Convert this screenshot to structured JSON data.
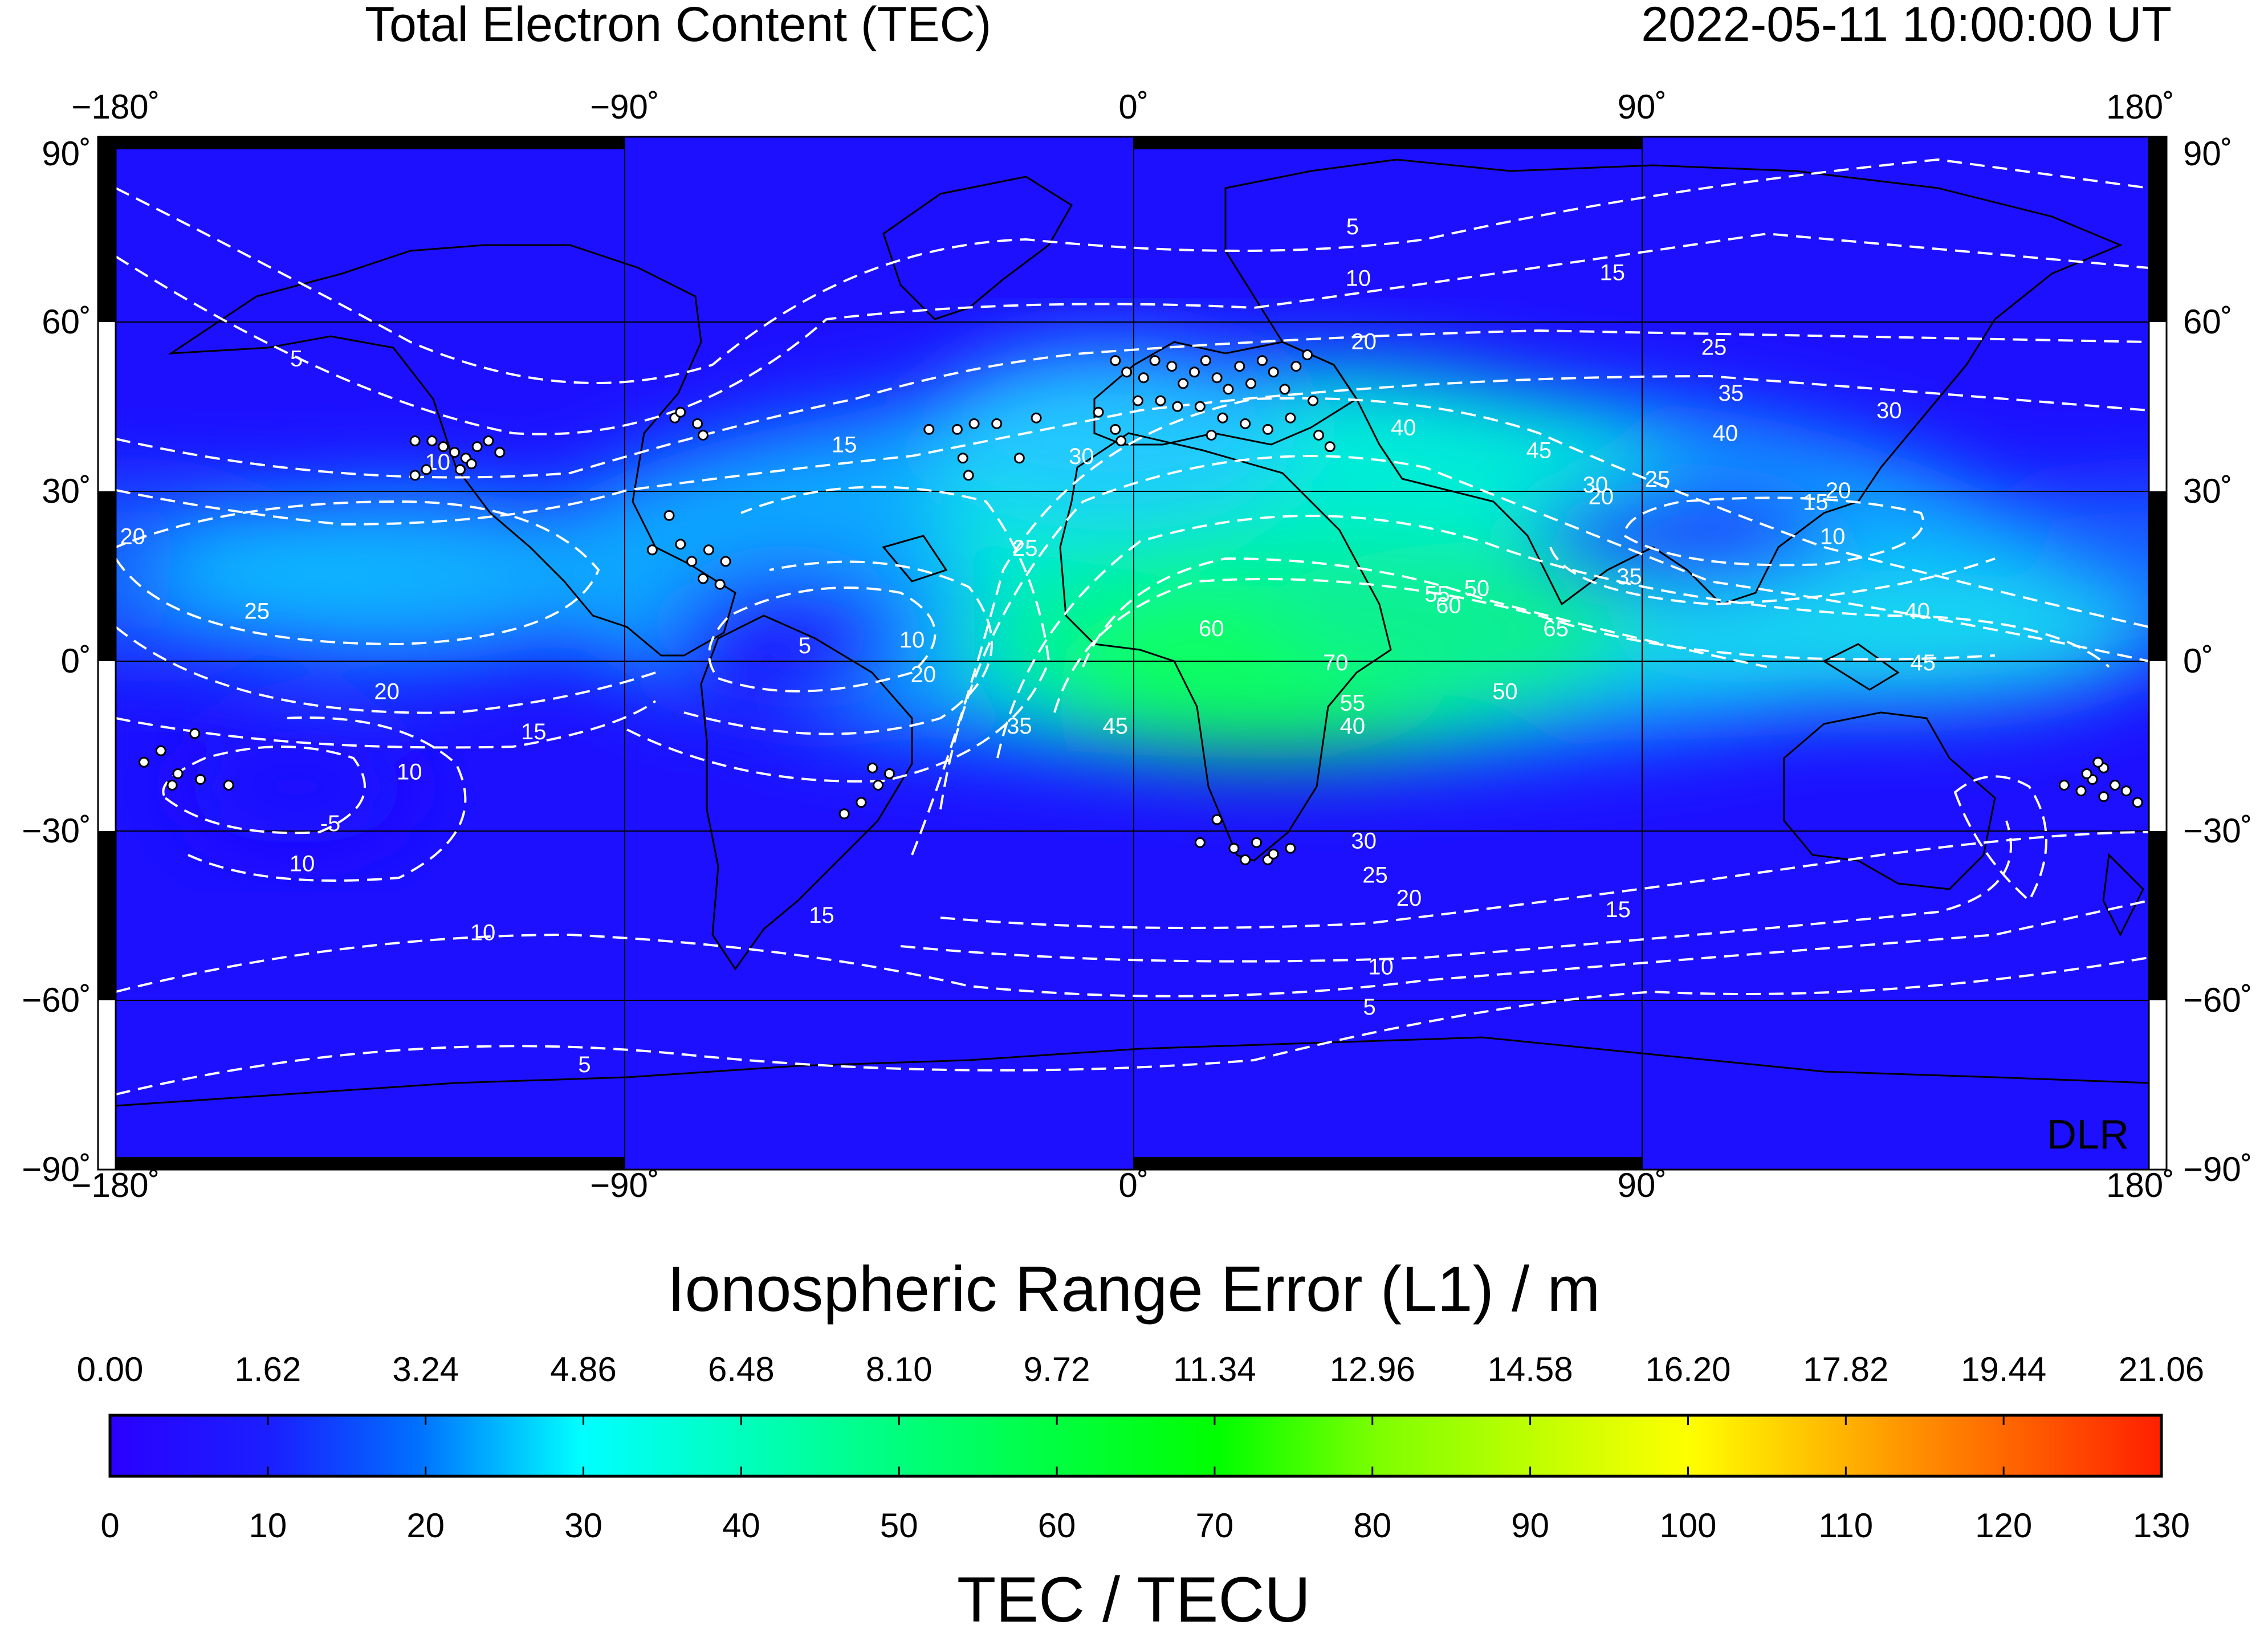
{
  "title": "Total Electron Content (TEC)",
  "timestamp": "2022-05-11  10:00:00 UT",
  "watermark": "DLR",
  "map": {
    "lon_ticks": [
      "−180˚",
      "−90˚",
      "0˚",
      "90˚",
      "180˚"
    ],
    "lat_ticks": [
      "90˚",
      "60˚",
      "30˚",
      "0˚",
      "−30˚",
      "−60˚",
      "−90˚"
    ],
    "contour_labels": [
      {
        "text": "5",
        "lon": -148,
        "lat": 50
      },
      {
        "text": "10",
        "lon": -123,
        "lat": 32
      },
      {
        "text": "5",
        "lon": 39,
        "lat": 73
      },
      {
        "text": "10",
        "lon": 40,
        "lat": 64
      },
      {
        "text": "15",
        "lon": 85,
        "lat": 65
      },
      {
        "text": "20",
        "lon": 41,
        "lat": 53
      },
      {
        "text": "25",
        "lon": 103,
        "lat": 52
      },
      {
        "text": "35",
        "lon": 106,
        "lat": 44
      },
      {
        "text": "40",
        "lon": 105,
        "lat": 37
      },
      {
        "text": "30",
        "lon": 134,
        "lat": 41
      },
      {
        "text": "15",
        "lon": -51,
        "lat": 35
      },
      {
        "text": "30",
        "lon": -9,
        "lat": 33
      },
      {
        "text": "40",
        "lon": 48,
        "lat": 38
      },
      {
        "text": "45",
        "lon": 72,
        "lat": 34
      },
      {
        "text": "25",
        "lon": -19,
        "lat": 17
      },
      {
        "text": "25",
        "lon": -155,
        "lat": 6
      },
      {
        "text": "20",
        "lon": -177,
        "lat": 19
      },
      {
        "text": "20",
        "lon": -132,
        "lat": -8
      },
      {
        "text": "15",
        "lon": -106,
        "lat": -15
      },
      {
        "text": "10",
        "lon": -128,
        "lat": -22
      },
      {
        "text": "10",
        "lon": -147,
        "lat": -38
      },
      {
        "text": "-5",
        "lon": -142,
        "lat": -31
      },
      {
        "text": "5",
        "lon": -58,
        "lat": 0
      },
      {
        "text": "10",
        "lon": -39,
        "lat": 1
      },
      {
        "text": "20",
        "lon": -37,
        "lat": -5
      },
      {
        "text": "35",
        "lon": -20,
        "lat": -14
      },
      {
        "text": "45",
        "lon": -3,
        "lat": -14
      },
      {
        "text": "60",
        "lon": 14,
        "lat": 3
      },
      {
        "text": "70",
        "lon": 36,
        "lat": -3
      },
      {
        "text": "65",
        "lon": 75,
        "lat": 3
      },
      {
        "text": "60",
        "lon": 56,
        "lat": 7
      },
      {
        "text": "55",
        "lon": 54,
        "lat": 9
      },
      {
        "text": "50",
        "lon": 61,
        "lat": 10
      },
      {
        "text": "55",
        "lon": 39,
        "lat": -10
      },
      {
        "text": "40",
        "lon": 39,
        "lat": -14
      },
      {
        "text": "50",
        "lon": 66,
        "lat": -8
      },
      {
        "text": "30",
        "lon": 82,
        "lat": 28
      },
      {
        "text": "25",
        "lon": 93,
        "lat": 29
      },
      {
        "text": "20",
        "lon": 83,
        "lat": 26
      },
      {
        "text": "15",
        "lon": 121,
        "lat": 25
      },
      {
        "text": "20",
        "lon": 125,
        "lat": 27
      },
      {
        "text": "10",
        "lon": 124,
        "lat": 19
      },
      {
        "text": "35",
        "lon": 88,
        "lat": 12
      },
      {
        "text": "40",
        "lon": 139,
        "lat": 6
      },
      {
        "text": "45",
        "lon": 140,
        "lat": -3
      },
      {
        "text": "30",
        "lon": 41,
        "lat": -34
      },
      {
        "text": "25",
        "lon": 43,
        "lat": -40
      },
      {
        "text": "20",
        "lon": 49,
        "lat": -44
      },
      {
        "text": "15",
        "lon": 86,
        "lat": -46
      },
      {
        "text": "15",
        "lon": -55,
        "lat": -47
      },
      {
        "text": "10",
        "lon": -115,
        "lat": -50
      },
      {
        "text": "10",
        "lon": 44,
        "lat": -56
      },
      {
        "text": "5",
        "lon": 42,
        "lat": -63
      },
      {
        "text": "5",
        "lon": -97,
        "lat": -73
      }
    ],
    "stations": [
      [
        -127,
        37
      ],
      [
        -124,
        37
      ],
      [
        -122,
        36
      ],
      [
        -120,
        35
      ],
      [
        -118,
        34
      ],
      [
        -116,
        36
      ],
      [
        -114,
        37
      ],
      [
        -112,
        35
      ],
      [
        -119,
        32
      ],
      [
        -117,
        33
      ],
      [
        -125,
        32
      ],
      [
        -127,
        31
      ],
      [
        -81,
        41
      ],
      [
        -80,
        42
      ],
      [
        -77,
        40
      ],
      [
        -76,
        38
      ],
      [
        -82,
        24
      ],
      [
        -85,
        18
      ],
      [
        -80,
        19
      ],
      [
        -78,
        16
      ],
      [
        -75,
        18
      ],
      [
        -72,
        16
      ],
      [
        -76,
        13
      ],
      [
        -73,
        12
      ],
      [
        -36,
        39
      ],
      [
        -31,
        39
      ],
      [
        -28,
        40
      ],
      [
        -24,
        40
      ],
      [
        -30,
        34
      ],
      [
        -29,
        31
      ],
      [
        -20,
        34
      ],
      [
        -17,
        41
      ],
      [
        -3,
        51
      ],
      [
        -1,
        49
      ],
      [
        2,
        48
      ],
      [
        4,
        51
      ],
      [
        7,
        50
      ],
      [
        9,
        47
      ],
      [
        11,
        49
      ],
      [
        13,
        51
      ],
      [
        15,
        48
      ],
      [
        17,
        46
      ],
      [
        19,
        50
      ],
      [
        21,
        47
      ],
      [
        23,
        51
      ],
      [
        25,
        49
      ],
      [
        27,
        46
      ],
      [
        29,
        50
      ],
      [
        31,
        52
      ],
      [
        5,
        44
      ],
      [
        8,
        43
      ],
      [
        12,
        43
      ],
      [
        16,
        41
      ],
      [
        20,
        40
      ],
      [
        24,
        39
      ],
      [
        28,
        41
      ],
      [
        32,
        44
      ],
      [
        -6,
        42
      ],
      [
        -3,
        39
      ],
      [
        1,
        44
      ],
      [
        14,
        38
      ],
      [
        -2,
        37
      ],
      [
        35,
        36
      ],
      [
        33,
        38
      ],
      [
        -175,
        -19
      ],
      [
        -172,
        -17
      ],
      [
        -169,
        -21
      ],
      [
        -166,
        -14
      ],
      [
        -165,
        -22
      ],
      [
        -170,
        -23
      ],
      [
        -160,
        -23
      ],
      [
        -45,
        -23
      ],
      [
        -48,
        -26
      ],
      [
        -51,
        -28
      ],
      [
        -43,
        -21
      ],
      [
        -46,
        -20
      ],
      [
        12,
        -33
      ],
      [
        18,
        -34
      ],
      [
        22,
        -33
      ],
      [
        24,
        -36
      ],
      [
        28,
        -34
      ],
      [
        15,
        -29
      ],
      [
        20,
        -36
      ],
      [
        25,
        -35
      ],
      [
        165,
        -23
      ],
      [
        168,
        -24
      ],
      [
        170,
        -22
      ],
      [
        172,
        -20
      ],
      [
        174,
        -23
      ],
      [
        176,
        -24
      ],
      [
        169,
        -21
      ],
      [
        172,
        -25
      ],
      [
        178,
        -26
      ],
      [
        171,
        -19
      ]
    ]
  },
  "colorbar": {
    "top_label": "Ionospheric Range Error (L1) / m",
    "bottom_label": "TEC / TECU",
    "top_ticks": [
      "0.00",
      "1.62",
      "3.24",
      "4.86",
      "6.48",
      "8.10",
      "9.72",
      "11.34",
      "12.96",
      "14.58",
      "16.20",
      "17.82",
      "19.44",
      "21.06"
    ],
    "bottom_ticks": [
      "0",
      "10",
      "20",
      "30",
      "40",
      "50",
      "60",
      "70",
      "80",
      "90",
      "100",
      "110",
      "120",
      "130"
    ],
    "range": [
      0,
      130
    ],
    "colors": [
      "#1a00ff",
      "#0040ff",
      "#00a0ff",
      "#00ffff",
      "#00ff80",
      "#00ff00",
      "#80ff00",
      "#ffff00",
      "#ff8000",
      "#ff2000"
    ]
  }
}
